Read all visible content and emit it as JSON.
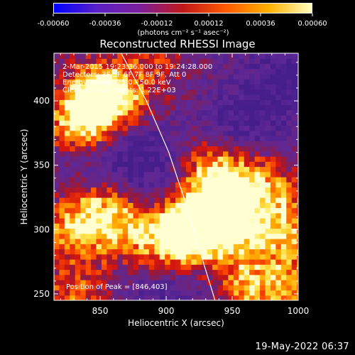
{
  "chart_data": {
    "type": "heatmap",
    "title": "Reconstructed RHESSI Image",
    "xlabel": "Heliocentric X (arcsec)",
    "ylabel": "Heliocentric Y (arcsec)",
    "xlim": [
      815,
      1000
    ],
    "ylim": [
      245,
      437
    ],
    "x_ticks": [
      850,
      900,
      950,
      1000
    ],
    "y_ticks": [
      250,
      300,
      350,
      400
    ],
    "colorbar": {
      "ticks": [
        "-0.00060",
        "-0.00036",
        "-0.00012",
        "0.00012",
        "0.00036",
        "0.00060"
      ],
      "units": "(photons cm⁻² s⁻¹ asec⁻²)",
      "range": [
        -0.0006,
        0.0006
      ],
      "colors": [
        "#0000ff",
        "#5a20c8",
        "#7c1f9c",
        "#c01818",
        "#ff5a00",
        "#ffb000",
        "#ffffc0"
      ]
    },
    "annotations": [
      "2-Mar-2015 19:23:36.000 to 19:24:28.000",
      "Detectors: 3F 5F 6F 7F 8F 9F, Att 0",
      "Energy Range: 25.0 - 50.0 keV",
      "Cleaned total counts: 1.22E+03"
    ],
    "peak_label": "Position of Peak = [846,403]",
    "peak": [
      846,
      403
    ],
    "limb_curve": [
      [
        866,
        437
      ],
      [
        885,
        400
      ],
      [
        902,
        360
      ],
      [
        915,
        320
      ],
      [
        925,
        285
      ],
      [
        937,
        245
      ]
    ],
    "hotspots": [
      {
        "x": 848,
        "y": 403,
        "intensity": 1.0
      },
      {
        "x": 835,
        "y": 380,
        "intensity": 0.65
      },
      {
        "x": 920,
        "y": 300,
        "intensity": 0.85
      },
      {
        "x": 905,
        "y": 290,
        "intensity": 0.7
      },
      {
        "x": 950,
        "y": 300,
        "intensity": 0.7
      },
      {
        "x": 945,
        "y": 330,
        "intensity": 0.6
      },
      {
        "x": 935,
        "y": 345,
        "intensity": 0.55
      },
      {
        "x": 990,
        "y": 300,
        "intensity": 0.65
      },
      {
        "x": 975,
        "y": 335,
        "intensity": 0.5
      },
      {
        "x": 830,
        "y": 300,
        "intensity": 0.6
      },
      {
        "x": 850,
        "y": 320,
        "intensity": 0.55
      },
      {
        "x": 870,
        "y": 300,
        "intensity": 0.5
      },
      {
        "x": 960,
        "y": 255,
        "intensity": 0.55
      },
      {
        "x": 995,
        "y": 255,
        "intensity": 0.5
      },
      {
        "x": 830,
        "y": 250,
        "intensity": 0.45
      },
      {
        "x": 870,
        "y": 400,
        "intensity": 0.35
      },
      {
        "x": 890,
        "y": 430,
        "intensity": 0.3
      }
    ],
    "cold_regions": [
      {
        "x": 880,
        "y": 355,
        "depth": 0.8
      },
      {
        "x": 960,
        "y": 385,
        "depth": 0.7
      },
      {
        "x": 995,
        "y": 420,
        "depth": 0.7
      },
      {
        "x": 905,
        "y": 255,
        "depth": 0.6
      },
      {
        "x": 840,
        "y": 345,
        "depth": 0.4
      }
    ]
  },
  "timestamp": "19-May-2022 06:37"
}
